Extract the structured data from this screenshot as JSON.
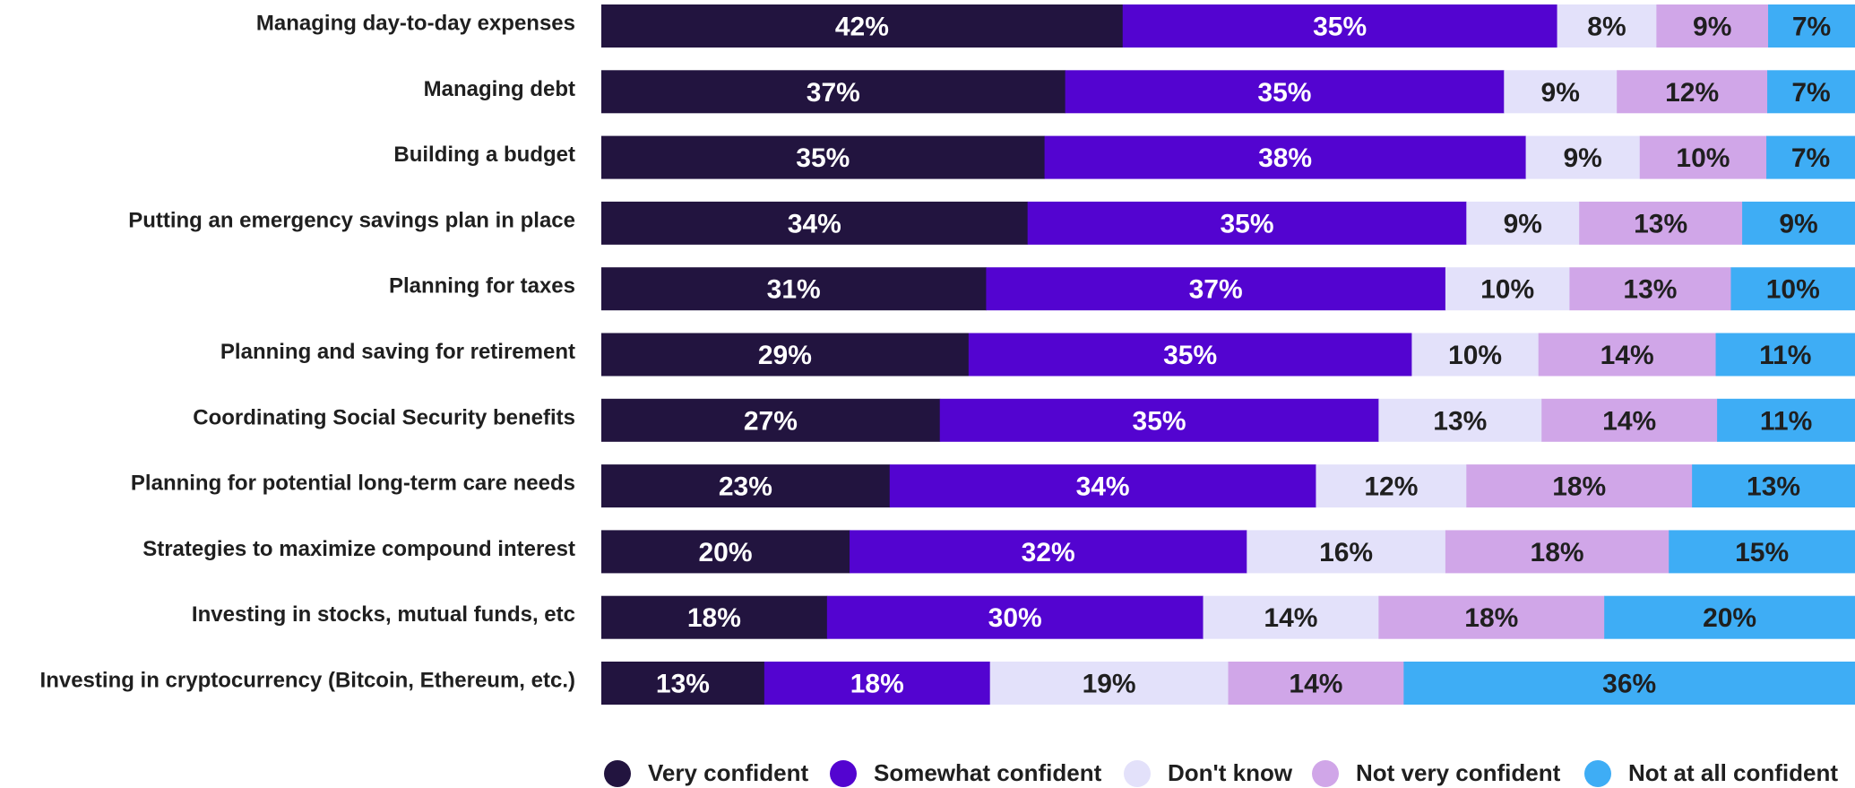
{
  "chart_data": {
    "type": "bar",
    "orientation": "horizontal",
    "stacked": true,
    "title": "",
    "xlabel": "",
    "ylabel": "",
    "xlim": [
      0,
      100
    ],
    "grid": false,
    "legend_position": "bottom",
    "value_suffix": "%",
    "categories": [
      "Managing day-to-day expenses",
      "Managing debt",
      "Building a budget",
      "Putting an emergency savings plan in place",
      "Planning for taxes",
      "Planning and saving for retirement",
      "Coordinating Social Security benefits",
      "Planning for potential long-term care needs",
      "Strategies to maximize compound interest",
      "Investing in stocks, mutual funds, etc",
      "Investing in cryptocurrency (Bitcoin, Ethereum, etc.)"
    ],
    "series": [
      {
        "name": "Very confident",
        "color": "#22143f",
        "label_color": "#ffffff",
        "values": [
          42,
          37,
          35,
          34,
          31,
          29,
          27,
          23,
          20,
          18,
          13
        ]
      },
      {
        "name": "Somewhat confident",
        "color": "#5304d0",
        "label_color": "#ffffff",
        "values": [
          35,
          35,
          38,
          35,
          37,
          35,
          35,
          34,
          32,
          30,
          18
        ]
      },
      {
        "name": "Don't know",
        "color": "#e3e1fa",
        "label_color": "#1f1f1f",
        "values": [
          8,
          9,
          9,
          9,
          10,
          10,
          13,
          12,
          16,
          14,
          19
        ]
      },
      {
        "name": "Not very confident",
        "color": "#d0a6e8",
        "label_color": "#1f1f1f",
        "values": [
          9,
          12,
          10,
          13,
          13,
          14,
          14,
          18,
          18,
          18,
          14
        ]
      },
      {
        "name": "Not at all confident",
        "color": "#3eadf5",
        "label_color": "#1f1f1f",
        "values": [
          7,
          7,
          7,
          9,
          10,
          11,
          11,
          13,
          15,
          20,
          36
        ]
      }
    ]
  }
}
